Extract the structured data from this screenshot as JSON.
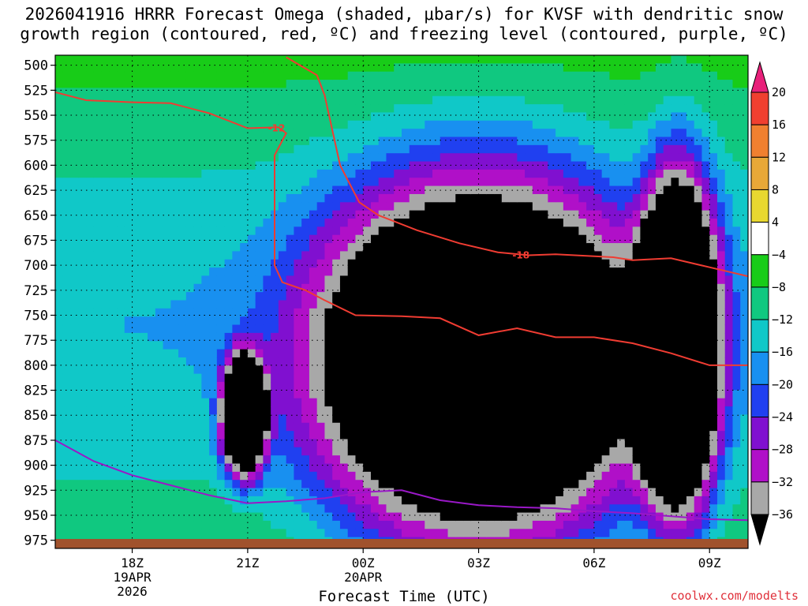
{
  "title_line1": "2026041916 HRRR Forecast Omega (shaded, μbar/s) for KVSF with dendritic snow",
  "title_line2": "growth region (contoured, red, ºC) and freezing level (contoured, purple, ºC)",
  "xlabel": "Forecast Time (UTC)",
  "credit": "coolwx.com/modelts",
  "chart_data": {
    "type": "heatmap",
    "title": "2026041916 HRRR Forecast Omega (shaded, μbar/s) for KVSF with dendritic snow growth region (contoured, red, ºC) and freezing level (contoured, purple, ºC)",
    "xlabel": "Forecast Time (UTC)",
    "ylabel": "",
    "y_axis": "pressure (hPa), inverted",
    "ylim": [
      980,
      490
    ],
    "y_ticks": [
      500,
      525,
      550,
      575,
      600,
      625,
      650,
      675,
      700,
      725,
      750,
      775,
      800,
      825,
      850,
      875,
      900,
      925,
      950,
      975
    ],
    "x_unit": "hours after 2026-04-19 16Z",
    "xlim": [
      0,
      18
    ],
    "x_ticks": [
      {
        "hour": 2,
        "label": "18Z",
        "sub1": "19APR",
        "sub2": "2026"
      },
      {
        "hour": 5,
        "label": "21Z",
        "sub1": "",
        "sub2": ""
      },
      {
        "hour": 8,
        "label": "00Z",
        "sub1": "20APR",
        "sub2": ""
      },
      {
        "hour": 11,
        "label": "03Z",
        "sub1": "",
        "sub2": ""
      },
      {
        "hour": 14,
        "label": "06Z",
        "sub1": "",
        "sub2": ""
      },
      {
        "hour": 17,
        "label": "09Z",
        "sub1": "",
        "sub2": ""
      }
    ],
    "colorbar": {
      "labels": [
        "20",
        "16",
        "12",
        "8",
        "4",
        "−4",
        "−8",
        "−12",
        "−16",
        "−20",
        "−24",
        "−28",
        "−32",
        "−36"
      ],
      "bins": [
        {
          "min": 20,
          "max": null,
          "color": "#e8207a"
        },
        {
          "min": 16,
          "max": 20,
          "color": "#f04030"
        },
        {
          "min": 12,
          "max": 16,
          "color": "#f08030"
        },
        {
          "min": 8,
          "max": 12,
          "color": "#e8a838"
        },
        {
          "min": 4,
          "max": 8,
          "color": "#e8d830"
        },
        {
          "min": -4,
          "max": 4,
          "color": "#ffffff"
        },
        {
          "min": -8,
          "max": -4,
          "color": "#18cc18"
        },
        {
          "min": -12,
          "max": -8,
          "color": "#10c880"
        },
        {
          "min": -16,
          "max": -12,
          "color": "#10c8c8"
        },
        {
          "min": -20,
          "max": -16,
          "color": "#1890f0"
        },
        {
          "min": -24,
          "max": -20,
          "color": "#2040f0"
        },
        {
          "min": -28,
          "max": -24,
          "color": "#8010d0"
        },
        {
          "min": -32,
          "max": -28,
          "color": "#b010c8"
        },
        {
          "min": -36,
          "max": -32,
          "color": "#a8a8a8"
        },
        {
          "min": null,
          "max": -36,
          "color": "#000000"
        }
      ]
    },
    "surface_color": "#a0522d",
    "omega_minimum_regions_ubar_s": [
      {
        "name": "main",
        "center_hour": 11,
        "center_hPa": 800,
        "value": "< -36",
        "top_hPa": 620,
        "bottom_hPa": 975,
        "from_hour": 7.2,
        "to_hour": 15.2
      },
      {
        "name": "east",
        "center_hour": 16.2,
        "center_hPa": 780,
        "value": "< -36",
        "top_hPa": 620,
        "bottom_hPa": 955,
        "from_hour": 15.2,
        "to_hour": 17.2
      },
      {
        "name": "21Z cell",
        "center_hour": 4.9,
        "center_hPa": 850,
        "value": "< -36",
        "top_hPa": 800,
        "bottom_hPa": 915,
        "from_hour": 4.4,
        "to_hour": 5.5
      }
    ],
    "series": [
      {
        "name": "-12",
        "color": "#f03c32",
        "points": [
          [
            0,
            527
          ],
          [
            0.8,
            535
          ],
          [
            2,
            537
          ],
          [
            3,
            538
          ],
          [
            4,
            548
          ],
          [
            5,
            563
          ],
          [
            5.8,
            562
          ],
          [
            6,
            568
          ],
          [
            5.7,
            590
          ],
          [
            5.7,
            700
          ],
          [
            5.9,
            717
          ],
          [
            6.5,
            725
          ],
          [
            7,
            735
          ],
          [
            7.8,
            750
          ],
          [
            9,
            751
          ],
          [
            10,
            753
          ],
          [
            11,
            770
          ],
          [
            12,
            763
          ],
          [
            13,
            772
          ],
          [
            14,
            772
          ],
          [
            15,
            778
          ],
          [
            16,
            788
          ],
          [
            17,
            800
          ],
          [
            18,
            800
          ]
        ]
      },
      {
        "name": "-18",
        "color": "#f03c32",
        "points": [
          [
            6,
            492
          ],
          [
            6.8,
            510
          ],
          [
            7,
            530
          ],
          [
            7.4,
            600
          ],
          [
            7.9,
            637
          ],
          [
            8.4,
            650
          ],
          [
            9.4,
            665
          ],
          [
            10.5,
            678
          ],
          [
            11.5,
            687
          ],
          [
            12.3,
            690
          ],
          [
            13,
            689
          ],
          [
            14.5,
            692
          ],
          [
            15,
            695
          ],
          [
            16,
            693
          ],
          [
            17,
            702
          ],
          [
            18,
            711
          ]
        ]
      },
      {
        "name": "0",
        "color": "#9a18c8",
        "points": [
          [
            0,
            875
          ],
          [
            1,
            896
          ],
          [
            2,
            910
          ],
          [
            3,
            920
          ],
          [
            4,
            930
          ],
          [
            5,
            938
          ],
          [
            6,
            936
          ],
          [
            7,
            933
          ],
          [
            8,
            927
          ],
          [
            9,
            925
          ],
          [
            10,
            935
          ],
          [
            11,
            940
          ],
          [
            12,
            942
          ],
          [
            13,
            943
          ],
          [
            14,
            946
          ],
          [
            15,
            948
          ],
          [
            16,
            951
          ],
          [
            17,
            954
          ],
          [
            18,
            955
          ]
        ]
      }
    ],
    "contour_labels": [
      {
        "text": "-12",
        "hour": 5.75,
        "hPa": 563
      },
      {
        "text": "-18",
        "hour": 12.1,
        "hPa": 690
      }
    ],
    "grid": "dotted"
  }
}
